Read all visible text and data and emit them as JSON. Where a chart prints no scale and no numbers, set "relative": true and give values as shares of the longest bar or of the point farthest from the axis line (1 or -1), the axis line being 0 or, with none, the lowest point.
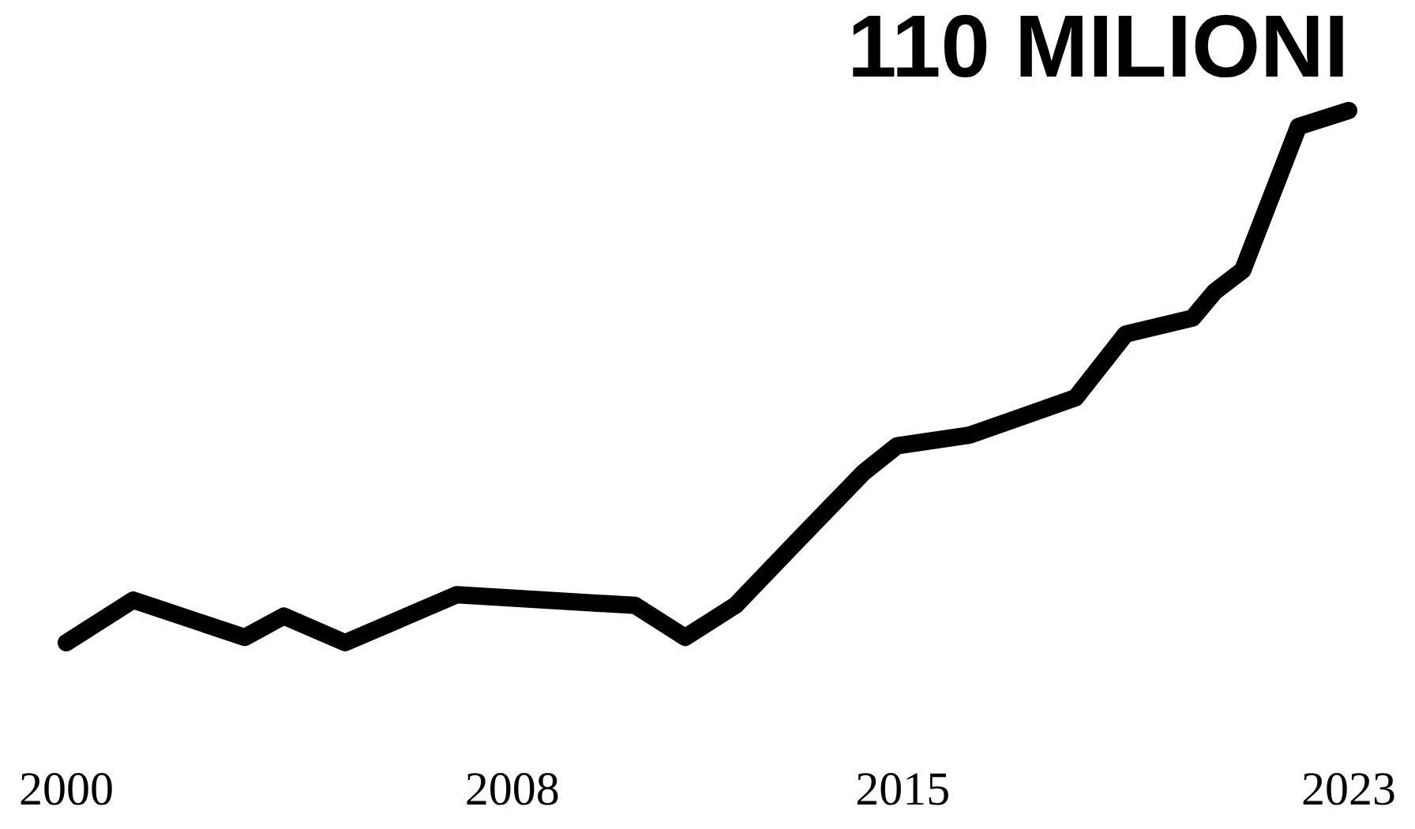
{
  "chart_data": {
    "type": "line",
    "relative": true,
    "x": [
      2000,
      2001.2,
      2003.2,
      2003.9,
      2005,
      2007,
      2010.2,
      2011.1,
      2012,
      2013.1,
      2014.3,
      2014.9,
      2016.2,
      2018.1,
      2019,
      2020.2,
      2020.6,
      2021.1,
      2022.1,
      2023
    ],
    "series": [
      {
        "color": "#000000",
        "values": [
          0,
          0.08,
          0.01,
          0.05,
          0,
          0.09,
          0.07,
          0.01,
          0.07,
          0.19,
          0.32,
          0.37,
          0.39,
          0.46,
          0.58,
          0.61,
          0.66,
          0.7,
          0.97,
          1
        ]
      }
    ],
    "xlim": [
      2000,
      2023
    ],
    "xticks": [
      2000,
      2008,
      2015,
      2023
    ],
    "annotations": [
      {
        "text": "110 MILIONI",
        "x": 2023,
        "y": 1
      }
    ],
    "marker": "none",
    "line_style": "solid"
  }
}
